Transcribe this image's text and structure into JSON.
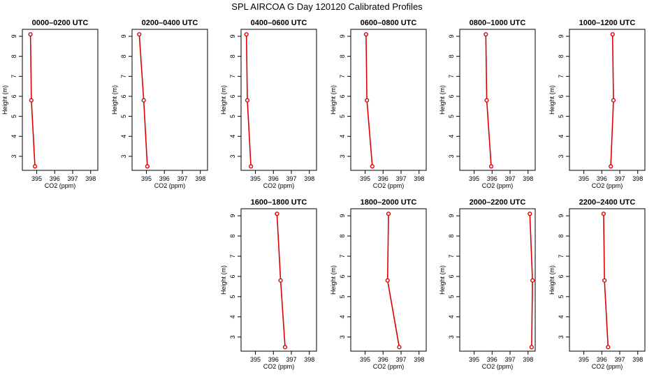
{
  "title": "SPL AIRCOA G  Day 120120  Calibrated Profiles",
  "colors": {
    "line": "#dd0000",
    "frame": "#000000"
  },
  "chart_data": [
    {
      "type": "line",
      "title": "0000–0200 UTC",
      "xlabel": "CO2 (ppm)",
      "ylabel": "Height (m)",
      "xlim": [
        394.2,
        398.4
      ],
      "ylim": [
        2.3,
        9.35
      ],
      "x_ticks": [
        395,
        396,
        397,
        398
      ],
      "y_ticks": [
        3,
        4,
        5,
        6,
        7,
        8,
        9
      ],
      "series": [
        {
          "x": [
            394.65,
            394.7,
            394.9
          ],
          "y": [
            9.1,
            5.8,
            2.5
          ]
        }
      ]
    },
    {
      "type": "line",
      "title": "0200–0400 UTC",
      "xlabel": "CO2 (ppm)",
      "ylabel": "Height (m)",
      "xlim": [
        394.2,
        398.4
      ],
      "ylim": [
        2.3,
        9.35
      ],
      "x_ticks": [
        395,
        396,
        397,
        398
      ],
      "y_ticks": [
        3,
        4,
        5,
        6,
        7,
        8,
        9
      ],
      "series": [
        {
          "x": [
            394.6,
            394.85,
            395.05
          ],
          "y": [
            9.1,
            5.8,
            2.5
          ]
        }
      ]
    },
    {
      "type": "line",
      "title": "0400–0600 UTC",
      "xlabel": "CO2 (ppm)",
      "ylabel": "Height (m)",
      "xlim": [
        394.2,
        398.4
      ],
      "ylim": [
        2.3,
        9.35
      ],
      "x_ticks": [
        395,
        396,
        397,
        398
      ],
      "y_ticks": [
        3,
        4,
        5,
        6,
        7,
        8,
        9
      ],
      "series": [
        {
          "x": [
            394.5,
            394.55,
            394.75
          ],
          "y": [
            9.1,
            5.8,
            2.5
          ]
        }
      ]
    },
    {
      "type": "line",
      "title": "0600–0800 UTC",
      "xlabel": "CO2 (ppm)",
      "ylabel": "Height (m)",
      "xlim": [
        394.2,
        398.4
      ],
      "ylim": [
        2.3,
        9.35
      ],
      "x_ticks": [
        395,
        396,
        397,
        398
      ],
      "y_ticks": [
        3,
        4,
        5,
        6,
        7,
        8,
        9
      ],
      "series": [
        {
          "x": [
            395.05,
            395.1,
            395.4
          ],
          "y": [
            9.1,
            5.8,
            2.5
          ]
        }
      ]
    },
    {
      "type": "line",
      "title": "0800–1000 UTC",
      "xlabel": "CO2 (ppm)",
      "ylabel": "Height (m)",
      "xlim": [
        394.2,
        398.4
      ],
      "ylim": [
        2.3,
        9.35
      ],
      "x_ticks": [
        395,
        396,
        397,
        398
      ],
      "y_ticks": [
        3,
        4,
        5,
        6,
        7,
        8,
        9
      ],
      "series": [
        {
          "x": [
            395.65,
            395.7,
            395.95
          ],
          "y": [
            9.1,
            5.8,
            2.5
          ]
        }
      ]
    },
    {
      "type": "line",
      "title": "1000–1200 UTC",
      "xlabel": "CO2 (ppm)",
      "ylabel": "Height (m)",
      "xlim": [
        394.2,
        398.4
      ],
      "ylim": [
        2.3,
        9.35
      ],
      "x_ticks": [
        395,
        396,
        397,
        398
      ],
      "y_ticks": [
        3,
        4,
        5,
        6,
        7,
        8,
        9
      ],
      "series": [
        {
          "x": [
            396.6,
            396.65,
            396.5
          ],
          "y": [
            9.1,
            5.8,
            2.5
          ]
        }
      ]
    },
    {
      "type": "line",
      "title": "1600–1800 UTC",
      "xlabel": "CO2 (ppm)",
      "ylabel": "Height (m)",
      "xlim": [
        394.2,
        398.4
      ],
      "ylim": [
        2.3,
        9.35
      ],
      "x_ticks": [
        395,
        396,
        397,
        398
      ],
      "y_ticks": [
        3,
        4,
        5,
        6,
        7,
        8,
        9
      ],
      "series": [
        {
          "x": [
            396.2,
            396.4,
            396.65
          ],
          "y": [
            9.1,
            5.8,
            2.5
          ]
        }
      ]
    },
    {
      "type": "line",
      "title": "1800–2000 UTC",
      "xlabel": "CO2 (ppm)",
      "ylabel": "Height (m)",
      "xlim": [
        394.2,
        398.4
      ],
      "ylim": [
        2.3,
        9.35
      ],
      "x_ticks": [
        395,
        396,
        397,
        398
      ],
      "y_ticks": [
        3,
        4,
        5,
        6,
        7,
        8,
        9
      ],
      "series": [
        {
          "x": [
            396.3,
            396.25,
            396.9
          ],
          "y": [
            9.1,
            5.8,
            2.5
          ]
        }
      ]
    },
    {
      "type": "line",
      "title": "2000–2200 UTC",
      "xlabel": "CO2 (ppm)",
      "ylabel": "Height (m)",
      "xlim": [
        394.2,
        398.4
      ],
      "ylim": [
        2.3,
        9.35
      ],
      "x_ticks": [
        395,
        396,
        397,
        398
      ],
      "y_ticks": [
        3,
        4,
        5,
        6,
        7,
        8,
        9
      ],
      "series": [
        {
          "x": [
            398.1,
            398.25,
            398.2
          ],
          "y": [
            9.1,
            5.8,
            2.5
          ]
        }
      ]
    },
    {
      "type": "line",
      "title": "2200–2400 UTC",
      "xlabel": "CO2 (ppm)",
      "ylabel": "Height (m)",
      "xlim": [
        394.2,
        398.4
      ],
      "ylim": [
        2.3,
        9.35
      ],
      "x_ticks": [
        395,
        396,
        397,
        398
      ],
      "y_ticks": [
        3,
        4,
        5,
        6,
        7,
        8,
        9
      ],
      "series": [
        {
          "x": [
            396.1,
            396.15,
            396.35
          ],
          "y": [
            9.1,
            5.8,
            2.5
          ]
        }
      ]
    }
  ]
}
